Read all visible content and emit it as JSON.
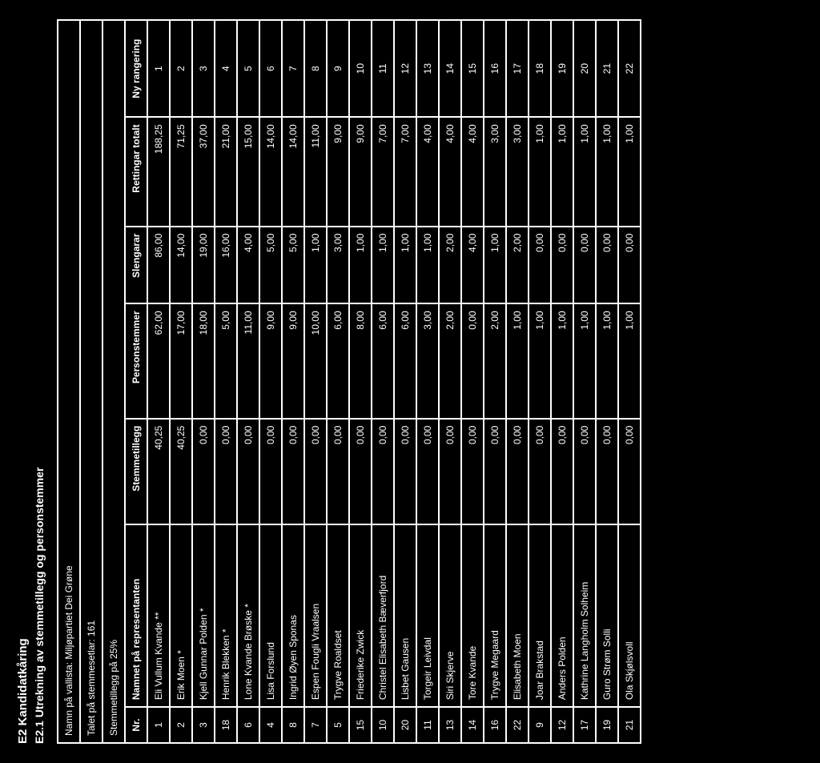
{
  "headings": {
    "main": "E2 Kandidatkåring",
    "sub": "E2.1 Utrekning av stemmetillegg og personstemmer"
  },
  "meta": {
    "party_label": "Namn på vallista: Miljøpartiet Dei Grøne",
    "count_label": "Talet på stemmesetlar: 161",
    "bonus_label": "Stemmetillegg på 25%"
  },
  "columns": {
    "nr": "Nr.",
    "name": "Namnet på representanten",
    "bonus": "Stemmetillegg",
    "personal": "Personstemmer",
    "slengarar": "Slengarar",
    "total": "Rettingar totalt",
    "rank": "Ny rangering"
  },
  "rows": [
    {
      "nr": "1",
      "name": "Eli Vullum Kvande",
      "mark": "**",
      "bonus": "40,25",
      "personal": "62,00",
      "slengarar": "86,00",
      "total": "188,25",
      "rank": "1"
    },
    {
      "nr": "2",
      "name": "Erik Moen",
      "mark": "*",
      "bonus": "40,25",
      "personal": "17,00",
      "slengarar": "14,00",
      "total": "71,25",
      "rank": "2"
    },
    {
      "nr": "3",
      "name": "Kjell Gunnar Polden",
      "mark": "*",
      "bonus": "0,00",
      "personal": "18,00",
      "slengarar": "19,00",
      "total": "37,00",
      "rank": "3"
    },
    {
      "nr": "18",
      "name": "Henrik Blekken",
      "mark": "*",
      "bonus": "0,00",
      "personal": "5,00",
      "slengarar": "16,00",
      "total": "21,00",
      "rank": "4"
    },
    {
      "nr": "6",
      "name": "Lone Kvande Brøske",
      "mark": "*",
      "bonus": "0,00",
      "personal": "11,00",
      "slengarar": "4,00",
      "total": "15,00",
      "rank": "5"
    },
    {
      "nr": "4",
      "name": "Lisa Forslund",
      "mark": "",
      "bonus": "0,00",
      "personal": "9,00",
      "slengarar": "5,00",
      "total": "14,00",
      "rank": "6"
    },
    {
      "nr": "8",
      "name": "Ingrid Øyen Sponas",
      "mark": "",
      "bonus": "0,00",
      "personal": "9,00",
      "slengarar": "5,00",
      "total": "14,00",
      "rank": "7"
    },
    {
      "nr": "7",
      "name": "Espen Fougli Vraalsen",
      "mark": "",
      "bonus": "0,00",
      "personal": "10,00",
      "slengarar": "1,00",
      "total": "11,00",
      "rank": "8"
    },
    {
      "nr": "5",
      "name": "Trygve Roaldset",
      "mark": "",
      "bonus": "0,00",
      "personal": "6,00",
      "slengarar": "3,00",
      "total": "9,00",
      "rank": "9"
    },
    {
      "nr": "15",
      "name": "Friederike Zwick",
      "mark": "",
      "bonus": "0,00",
      "personal": "8,00",
      "slengarar": "1,00",
      "total": "9,00",
      "rank": "10"
    },
    {
      "nr": "10",
      "name": "Christel Elisabeth Bæverfjord",
      "mark": "",
      "bonus": "0,00",
      "personal": "6,00",
      "slengarar": "1,00",
      "total": "7,00",
      "rank": "11"
    },
    {
      "nr": "20",
      "name": "Lisbet Gausen",
      "mark": "",
      "bonus": "0,00",
      "personal": "6,00",
      "slengarar": "1,00",
      "total": "7,00",
      "rank": "12"
    },
    {
      "nr": "11",
      "name": "Torgeir Leivdal",
      "mark": "",
      "bonus": "0,00",
      "personal": "3,00",
      "slengarar": "1,00",
      "total": "4,00",
      "rank": "13"
    },
    {
      "nr": "13",
      "name": "Siri Skjerve",
      "mark": "",
      "bonus": "0,00",
      "personal": "2,00",
      "slengarar": "2,00",
      "total": "4,00",
      "rank": "14"
    },
    {
      "nr": "14",
      "name": "Tore Kvande",
      "mark": "",
      "bonus": "0,00",
      "personal": "0,00",
      "slengarar": "4,00",
      "total": "4,00",
      "rank": "15"
    },
    {
      "nr": "16",
      "name": "Trygve Megaard",
      "mark": "",
      "bonus": "0,00",
      "personal": "2,00",
      "slengarar": "1,00",
      "total": "3,00",
      "rank": "16"
    },
    {
      "nr": "22",
      "name": "Elisabeth Moen",
      "mark": "",
      "bonus": "0,00",
      "personal": "1,00",
      "slengarar": "2,00",
      "total": "3,00",
      "rank": "17"
    },
    {
      "nr": "9",
      "name": "Joar Brakstad",
      "mark": "",
      "bonus": "0,00",
      "personal": "1,00",
      "slengarar": "0,00",
      "total": "1,00",
      "rank": "18"
    },
    {
      "nr": "12",
      "name": "Anders Polden",
      "mark": "",
      "bonus": "0,00",
      "personal": "1,00",
      "slengarar": "0,00",
      "total": "1,00",
      "rank": "19"
    },
    {
      "nr": "17",
      "name": "Kathrine Langholm Solheim",
      "mark": "",
      "bonus": "0,00",
      "personal": "1,00",
      "slengarar": "0,00",
      "total": "1,00",
      "rank": "20"
    },
    {
      "nr": "19",
      "name": "Guro Strøm Solli",
      "mark": "",
      "bonus": "0,00",
      "personal": "1,00",
      "slengarar": "0,00",
      "total": "1,00",
      "rank": "21"
    },
    {
      "nr": "21",
      "name": "Ola Skjølsvoll",
      "mark": "",
      "bonus": "0,00",
      "personal": "1,00",
      "slengarar": "0,00",
      "total": "1,00",
      "rank": "22"
    }
  ]
}
